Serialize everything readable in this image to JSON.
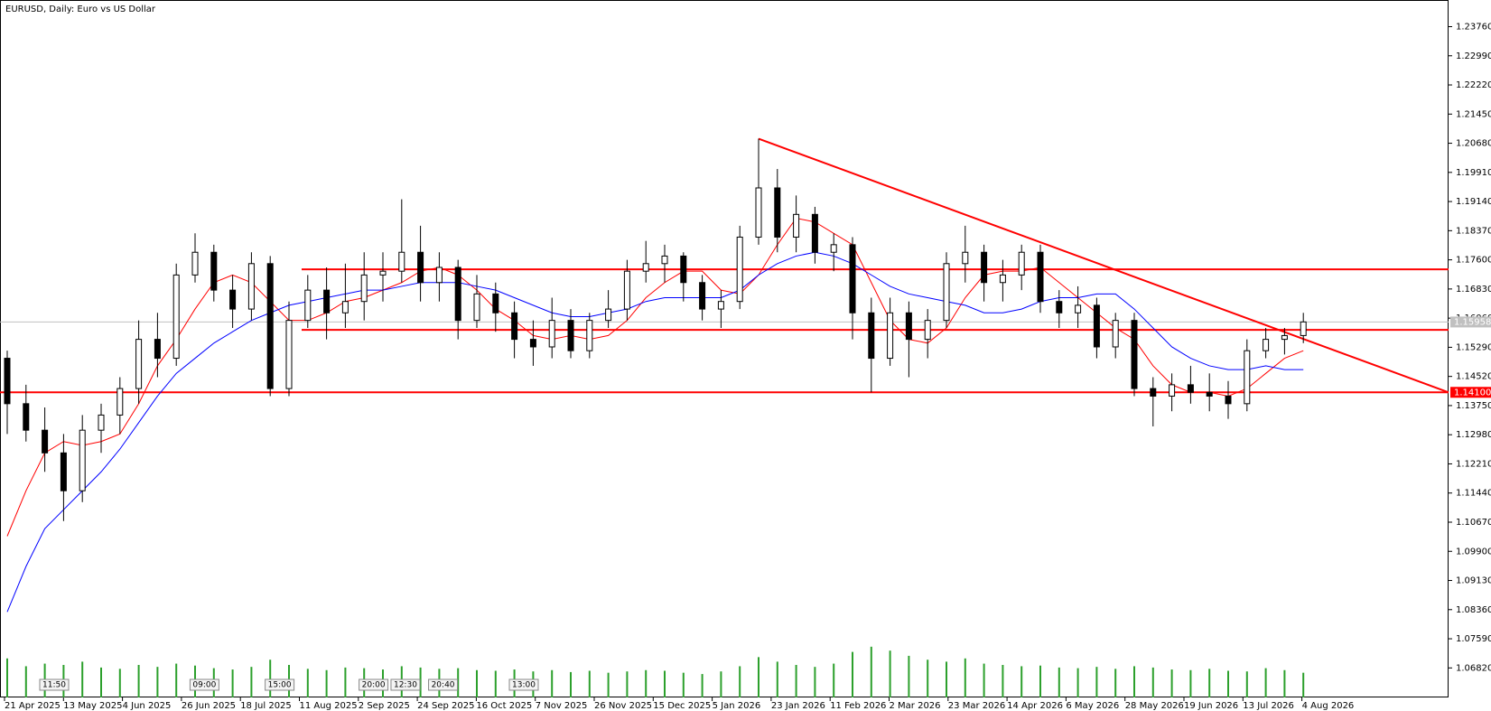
{
  "chart_data": {
    "type": "candlestick",
    "title": "EURUSD, Daily:  Euro vs US Dollar",
    "ylim": [
      1.0604,
      1.2444
    ],
    "yticks": [
      {
        "value": 1.0682,
        "label": "1.06820"
      },
      {
        "value": 1.0759,
        "label": "1.07590"
      },
      {
        "value": 1.0836,
        "label": "1.08360"
      },
      {
        "value": 1.0913,
        "label": "1.09130"
      },
      {
        "value": 1.099,
        "label": "1.09900"
      },
      {
        "value": 1.1067,
        "label": "1.10670"
      },
      {
        "value": 1.1144,
        "label": "1.11440"
      },
      {
        "value": 1.1221,
        "label": "1.12210"
      },
      {
        "value": 1.1298,
        "label": "1.12980"
      },
      {
        "value": 1.1375,
        "label": "1.13750"
      },
      {
        "value": 1.1452,
        "label": "1.14520"
      },
      {
        "value": 1.1529,
        "label": "1.15290"
      },
      {
        "value": 1.1606,
        "label": "1.16060"
      },
      {
        "value": 1.1683,
        "label": "1.16830"
      },
      {
        "value": 1.176,
        "label": "1.17600"
      },
      {
        "value": 1.1837,
        "label": "1.18370"
      },
      {
        "value": 1.1914,
        "label": "1.19140"
      },
      {
        "value": 1.1991,
        "label": "1.19910"
      },
      {
        "value": 1.2068,
        "label": "1.20680"
      },
      {
        "value": 1.2145,
        "label": "1.21450"
      },
      {
        "value": 1.2222,
        "label": "1.22220"
      },
      {
        "value": 1.2299,
        "label": "1.22990"
      },
      {
        "value": 1.2376,
        "label": "1.23760"
      }
    ],
    "xlabels": [
      "21 Apr 2025",
      "13 May 2025",
      "4 Jun 2025",
      "26 Jun 2025",
      "18 Jul 2025",
      "11 Aug 2025",
      "2 Sep 2025",
      "24 Sep 2025",
      "16 Oct 2025",
      "7 Nov 2025",
      "26 Nov 2025",
      "15 Dec 2025",
      "5 Jan 2026",
      "23 Jan 2026",
      "11 Feb 2026",
      "2 Mar 2026",
      "23 Mar 2026",
      "14 Apr 2026",
      "6 May 2026",
      "28 May 2026",
      "19 Jun 2026",
      "13 Jul 2026",
      "4 Aug 2026"
    ],
    "open": [
      1.15,
      1.138,
      1.131,
      1.125,
      1.115,
      1.131,
      1.135,
      1.142,
      1.155,
      1.15,
      1.172,
      1.178,
      1.168,
      1.163,
      1.175,
      1.142,
      1.16,
      1.168,
      1.162,
      1.165,
      1.172,
      1.173,
      1.178,
      1.17,
      1.174,
      1.16,
      1.167,
      1.162,
      1.155,
      1.153,
      1.16,
      1.152,
      1.16,
      1.163,
      1.173,
      1.175,
      1.177,
      1.17,
      1.163,
      1.165,
      1.182,
      1.195,
      1.182,
      1.188,
      1.178,
      1.18,
      1.162,
      1.15,
      1.162,
      1.155,
      1.16,
      1.175,
      1.178,
      1.17,
      1.172,
      1.178,
      1.165,
      1.162,
      1.164,
      1.153,
      1.16,
      1.142,
      1.14,
      1.143,
      1.141,
      1.14,
      1.138,
      1.152,
      1.155,
      1.156
    ],
    "high": [
      1.152,
      1.143,
      1.137,
      1.13,
      1.135,
      1.138,
      1.145,
      1.16,
      1.162,
      1.175,
      1.183,
      1.18,
      1.172,
      1.178,
      1.177,
      1.165,
      1.172,
      1.174,
      1.175,
      1.178,
      1.178,
      1.192,
      1.185,
      1.178,
      1.176,
      1.172,
      1.17,
      1.165,
      1.16,
      1.166,
      1.163,
      1.162,
      1.168,
      1.176,
      1.181,
      1.18,
      1.178,
      1.172,
      1.168,
      1.185,
      1.208,
      1.2,
      1.193,
      1.19,
      1.183,
      1.182,
      1.166,
      1.166,
      1.165,
      1.163,
      1.178,
      1.185,
      1.18,
      1.176,
      1.18,
      1.18,
      1.168,
      1.169,
      1.166,
      1.162,
      1.162,
      1.145,
      1.146,
      1.148,
      1.146,
      1.144,
      1.155,
      1.158,
      1.158,
      1.162
    ],
    "low": [
      1.13,
      1.128,
      1.12,
      1.107,
      1.112,
      1.125,
      1.13,
      1.138,
      1.145,
      1.148,
      1.17,
      1.165,
      1.158,
      1.16,
      1.14,
      1.14,
      1.158,
      1.155,
      1.158,
      1.16,
      1.165,
      1.17,
      1.165,
      1.165,
      1.155,
      1.158,
      1.157,
      1.15,
      1.148,
      1.15,
      1.15,
      1.15,
      1.158,
      1.16,
      1.17,
      1.17,
      1.165,
      1.16,
      1.158,
      1.163,
      1.18,
      1.178,
      1.178,
      1.175,
      1.173,
      1.155,
      1.141,
      1.148,
      1.145,
      1.15,
      1.158,
      1.17,
      1.165,
      1.165,
      1.168,
      1.162,
      1.158,
      1.158,
      1.15,
      1.15,
      1.14,
      1.132,
      1.136,
      1.138,
      1.136,
      1.134,
      1.136,
      1.15,
      1.151,
      1.154
    ],
    "close": [
      1.138,
      1.131,
      1.125,
      1.115,
      1.131,
      1.135,
      1.142,
      1.155,
      1.15,
      1.172,
      1.178,
      1.168,
      1.163,
      1.175,
      1.142,
      1.16,
      1.168,
      1.162,
      1.165,
      1.172,
      1.173,
      1.178,
      1.17,
      1.174,
      1.16,
      1.167,
      1.162,
      1.155,
      1.153,
      1.16,
      1.152,
      1.16,
      1.163,
      1.173,
      1.175,
      1.177,
      1.17,
      1.163,
      1.165,
      1.182,
      1.195,
      1.182,
      1.188,
      1.178,
      1.18,
      1.162,
      1.15,
      1.162,
      1.155,
      1.16,
      1.175,
      1.178,
      1.17,
      1.172,
      1.178,
      1.165,
      1.162,
      1.164,
      1.153,
      1.16,
      1.142,
      1.14,
      1.143,
      1.141,
      1.14,
      1.138,
      1.152,
      1.155,
      1.156,
      1.1596
    ],
    "volume": [
      60,
      48,
      52,
      50,
      55,
      46,
      44,
      50,
      47,
      52,
      49,
      45,
      43,
      47,
      58,
      50,
      44,
      42,
      46,
      45,
      43,
      48,
      46,
      44,
      45,
      42,
      41,
      43,
      40,
      42,
      39,
      41,
      38,
      40,
      42,
      41,
      38,
      36,
      40,
      48,
      62,
      55,
      50,
      47,
      52,
      70,
      78,
      72,
      64,
      58,
      55,
      60,
      52,
      50,
      48,
      49,
      46,
      45,
      47,
      44,
      48,
      46,
      43,
      42,
      44,
      41,
      40,
      45,
      42,
      38
    ],
    "series": [
      {
        "name": "MA fast",
        "color": "#ff0000",
        "values": [
          1.103,
          1.115,
          1.125,
          1.128,
          1.127,
          1.128,
          1.13,
          1.138,
          1.148,
          1.155,
          1.163,
          1.17,
          1.172,
          1.17,
          1.165,
          1.16,
          1.16,
          1.162,
          1.165,
          1.166,
          1.168,
          1.17,
          1.173,
          1.174,
          1.172,
          1.168,
          1.163,
          1.16,
          1.156,
          1.155,
          1.156,
          1.155,
          1.156,
          1.16,
          1.166,
          1.17,
          1.173,
          1.173,
          1.168,
          1.167,
          1.172,
          1.18,
          1.187,
          1.186,
          1.183,
          1.18,
          1.17,
          1.16,
          1.155,
          1.154,
          1.158,
          1.166,
          1.172,
          1.173,
          1.173,
          1.174,
          1.17,
          1.166,
          1.162,
          1.158,
          1.155,
          1.148,
          1.143,
          1.141,
          1.141,
          1.14,
          1.142,
          1.146,
          1.15,
          1.152
        ]
      },
      {
        "name": "MA slow",
        "color": "#0000ff",
        "values": [
          1.083,
          1.095,
          1.105,
          1.11,
          1.115,
          1.12,
          1.126,
          1.133,
          1.14,
          1.146,
          1.15,
          1.154,
          1.157,
          1.16,
          1.162,
          1.164,
          1.165,
          1.166,
          1.167,
          1.168,
          1.168,
          1.169,
          1.17,
          1.17,
          1.17,
          1.169,
          1.168,
          1.166,
          1.164,
          1.162,
          1.161,
          1.161,
          1.162,
          1.163,
          1.165,
          1.166,
          1.166,
          1.166,
          1.166,
          1.168,
          1.172,
          1.175,
          1.177,
          1.178,
          1.177,
          1.175,
          1.172,
          1.169,
          1.167,
          1.166,
          1.165,
          1.164,
          1.162,
          1.162,
          1.163,
          1.165,
          1.166,
          1.166,
          1.167,
          1.167,
          1.163,
          1.158,
          1.153,
          1.15,
          1.148,
          1.147,
          1.147,
          1.148,
          1.147,
          1.147
        ]
      }
    ],
    "levels": [
      1.1735,
      1.1575,
      {
        "value": 1.141,
        "label": "1.14100"
      }
    ],
    "trendline": [
      1.208,
      1.141
    ],
    "bid": 1.15958,
    "events": [
      "11:50",
      "09:00",
      "15:00",
      "20:00",
      "12:30",
      "20:40",
      "13:00"
    ]
  }
}
